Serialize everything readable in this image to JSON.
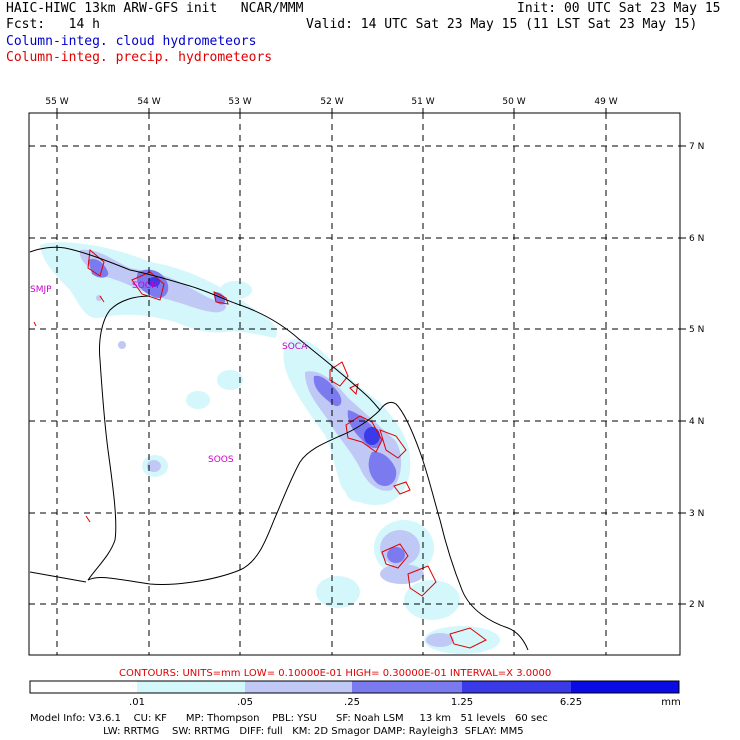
{
  "header": {
    "title_left": "HAIC-HIWC 13km ARW-GFS init   NCAR/MMM",
    "init": "Init: 00 UTC Sat 23 May 15",
    "fcst": "Fcst:   14 h",
    "valid": "Valid: 14 UTC Sat 23 May 15 (11 LST Sat 23 May 15)",
    "field_cloud": "Column-integ. cloud hydrometeors",
    "field_precip": "Column-integ. precip. hydrometeors"
  },
  "lon_labels": [
    "55 W",
    "54 W",
    "53 W",
    "52 W",
    "51 W",
    "50 W",
    "49 W"
  ],
  "lat_labels": [
    "7 N",
    "6 N",
    "5 N",
    "4 N",
    "3 N",
    "2 N"
  ],
  "stations": [
    "SMJP",
    "SOCM",
    "SOCA",
    "SOOS"
  ],
  "contour_info": "CONTOURS:  UNITS=mm  LOW= 0.10000E-01  HIGH= 0.30000E-01  INTERVAL=X  3.0000",
  "colorbar": {
    "ticks": [
      ".01",
      ".05",
      ".25",
      "1.25",
      "6.25"
    ],
    "unit": "mm",
    "colors": [
      "#ffffff",
      "#d4f7fb",
      "#c0c8f6",
      "#7b7bef",
      "#3a3ae8",
      "#0a0ae6"
    ]
  },
  "model_info": {
    "line1": "Model Info: V3.6.1    CU: KF      MP: Thompson    PBL: YSU      SF: Noah LSM     13 km   51 levels   60 sec",
    "line2": "                       LW: RRTMG    SW: RRTMG   DIFF: full   KM: 2D Smagor DAMP: Rayleigh3  SFLAY: MM5"
  }
}
